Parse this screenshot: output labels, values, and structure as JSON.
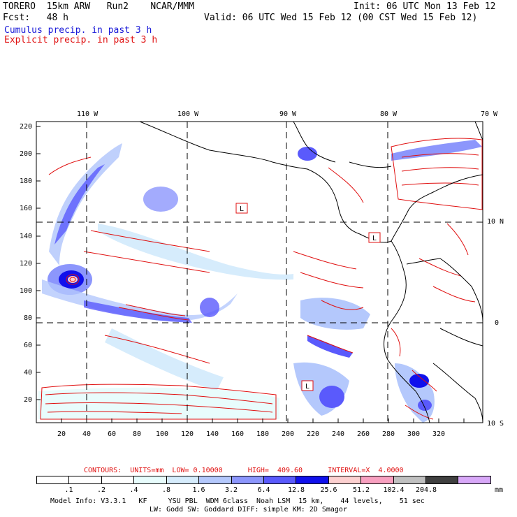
{
  "header": {
    "model": "TORERO  15km ARW   Run2    NCAR/MMM",
    "init": "Init: 06 UTC Mon 13 Feb 12",
    "fcst": "Fcst:   48 h",
    "valid": "Valid: 06 UTC Wed 15 Feb 12 (00 CST Wed 15 Feb 12)",
    "cumulus": "Cumulus precip. in past 3 h",
    "explicit": "Explicit precip. in past 3 h"
  },
  "top_lon_labels": [
    "110 W",
    "100 W",
    "90 W",
    "80 W",
    "70 W"
  ],
  "right_lat_labels": [
    "10 N",
    "0",
    "10 S"
  ],
  "y_ticks": [
    "220",
    "200",
    "180",
    "160",
    "140",
    "120",
    "100",
    "80",
    "60",
    "40",
    "20"
  ],
  "x_ticks": [
    "20",
    "40",
    "60",
    "80",
    "100",
    "120",
    "140",
    "160",
    "180",
    "200",
    "220",
    "240",
    "260",
    "280",
    "300",
    "320"
  ],
  "map_labels": [
    "L",
    "L",
    "L"
  ],
  "contours_line": {
    "title": "CONTOURS:  UNITS=mm  LOW= 0.10000      HIGH=  409.60      INTERVAL=X  4.0000"
  },
  "colorbar": {
    "labels": [
      ".1",
      ".2",
      ".4",
      ".8",
      "1.6",
      "3.2",
      "6.4",
      "12.8",
      "25.6",
      "51.2",
      "102.4",
      "204.8"
    ],
    "unit": "mm",
    "colors": [
      "#ffffff",
      "#ffffff",
      "#ffffff",
      "#e8fcfc",
      "#d6ecfc",
      "#b4c8fc",
      "#8c96fc",
      "#5a5afc",
      "#1010ec",
      "#fcd0d0",
      "#f8a0c0",
      "#c0c0c0",
      "#404040",
      "#d8a8f8"
    ]
  },
  "footer": {
    "line1": "Model Info: V3.3.1   KF     YSU PBL  WDM 6class  Noah LSM  15 km,    44 levels,    51 sec",
    "line2": "LW: Godd SW: Goddard DIFF: simple KM: 2D Smagor"
  }
}
